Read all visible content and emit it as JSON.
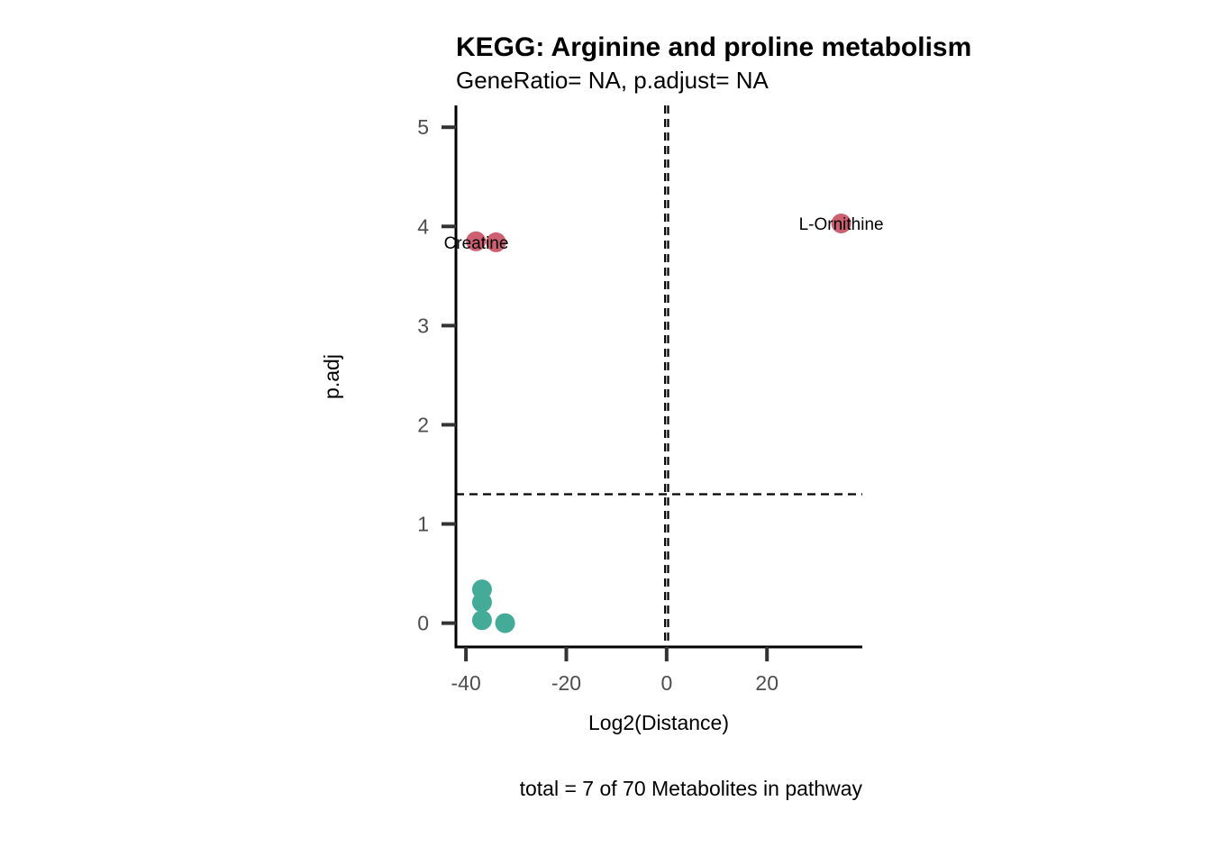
{
  "chart_data": {
    "type": "scatter",
    "title": "KEGG: Arginine and proline metabolism",
    "subtitle": "GeneRatio= NA, p.adjust= NA",
    "xlabel": "Log2(Distance)",
    "ylabel": "p.adj",
    "caption": "total = 7 of 70 Metabolites in pathway",
    "xlim": [
      -42,
      39
    ],
    "ylim": [
      -0.24,
      5.22
    ],
    "x_ticks": [
      -40,
      -20,
      0,
      20
    ],
    "y_ticks": [
      0,
      1,
      2,
      3,
      4,
      5
    ],
    "grid": false,
    "legend": "none",
    "reference_lines": {
      "horizontal_y": 1.3,
      "vertical_x": [
        -0.3,
        0.3
      ]
    },
    "colors": {
      "significant": "#cc6070",
      "not_significant": "#43ab97",
      "axis": "#000000",
      "tick": "#333333"
    },
    "series": [
      {
        "color": "significant",
        "points": [
          {
            "x": -38.0,
            "y": 3.85,
            "label": ""
          },
          {
            "x": -34.0,
            "y": 3.84,
            "label": "Creatine"
          },
          {
            "x": 34.8,
            "y": 4.03,
            "label": "L-Ornithine"
          }
        ]
      },
      {
        "color": "not_significant",
        "points": [
          {
            "x": -36.8,
            "y": 0.34,
            "label": ""
          },
          {
            "x": -36.8,
            "y": 0.21,
            "label": ""
          },
          {
            "x": -36.8,
            "y": 0.03,
            "label": ""
          },
          {
            "x": -32.2,
            "y": 0.0,
            "label": ""
          }
        ]
      }
    ]
  }
}
